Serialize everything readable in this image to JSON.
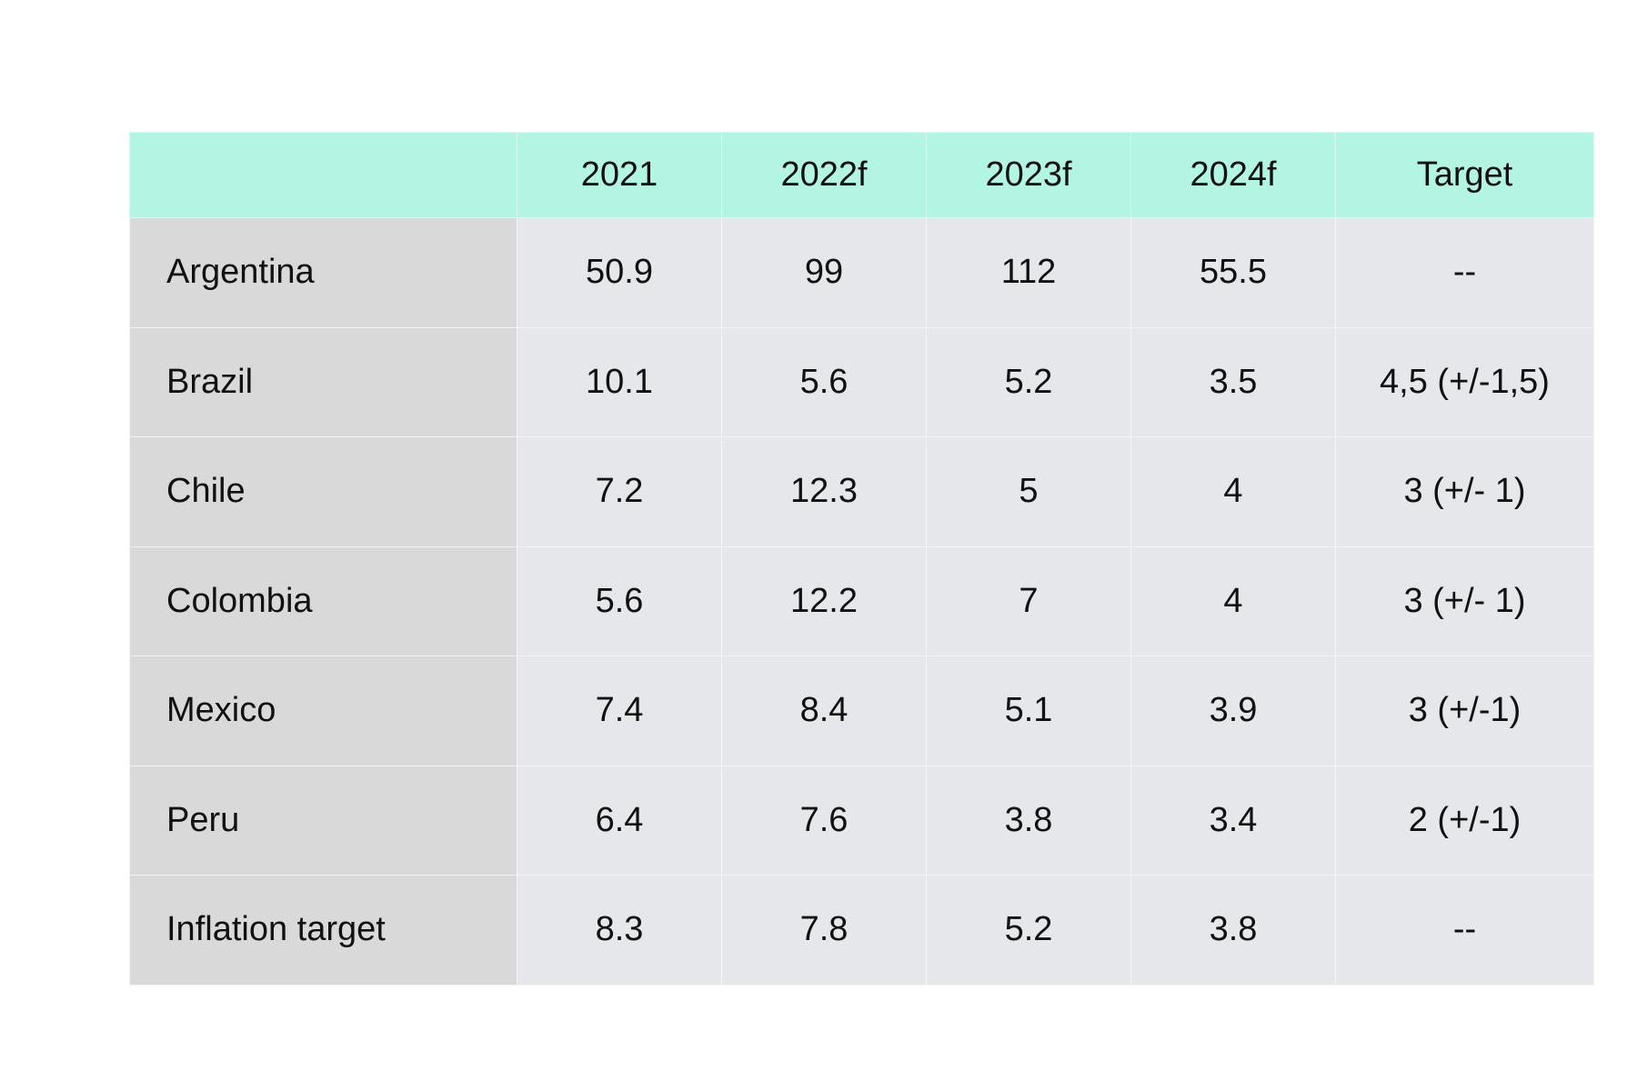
{
  "chart_data": {
    "type": "table",
    "columns": [
      "",
      "2021",
      "2022f",
      "2023f",
      "2024f",
      "Target"
    ],
    "rows": [
      {
        "label": "Argentina",
        "values": [
          "50.9",
          "99",
          "112",
          "55.5",
          "--"
        ]
      },
      {
        "label": "Brazil",
        "values": [
          "10.1",
          "5.6",
          "5.2",
          "3.5",
          "4,5 (+/-1,5)"
        ]
      },
      {
        "label": "Chile",
        "values": [
          "7.2",
          "12.3",
          "5",
          "4",
          "3 (+/- 1)"
        ]
      },
      {
        "label": "Colombia",
        "values": [
          "5.6",
          "12.2",
          "7",
          "4",
          "3 (+/- 1)"
        ]
      },
      {
        "label": "Mexico",
        "values": [
          "7.4",
          "8.4",
          "5.1",
          "3.9",
          "3 (+/-1)"
        ]
      },
      {
        "label": "Peru",
        "values": [
          "6.4",
          "7.6",
          "3.8",
          "3.4",
          "2 (+/-1)"
        ]
      },
      {
        "label": "Inflation target",
        "values": [
          "8.3",
          "7.8",
          "5.2",
          "3.8",
          "--"
        ]
      }
    ],
    "colors": {
      "header_bg": "#b3f5e3",
      "label_bg": "#d9d9da",
      "cell_bg": "#e6e7ea"
    }
  }
}
